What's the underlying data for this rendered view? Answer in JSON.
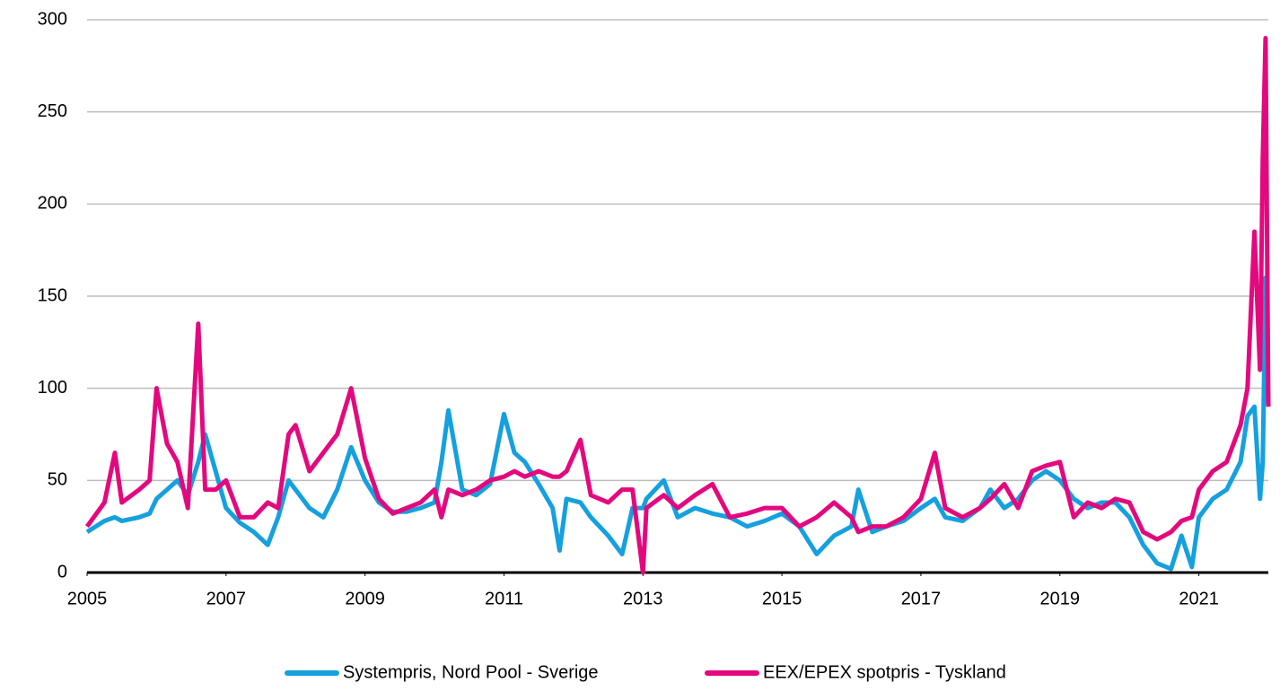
{
  "chart_data": {
    "type": "line",
    "x": [
      2005.0,
      2005.25,
      2005.4,
      2005.5,
      2005.75,
      2005.9,
      2006.0,
      2006.15,
      2006.3,
      2006.45,
      2006.6,
      2006.7,
      2006.85,
      2007.0,
      2007.2,
      2007.4,
      2007.6,
      2007.75,
      2007.9,
      2008.0,
      2008.2,
      2008.4,
      2008.6,
      2008.8,
      2009.0,
      2009.2,
      2009.4,
      2009.6,
      2009.8,
      2010.0,
      2010.1,
      2010.2,
      2010.4,
      2010.6,
      2010.8,
      2011.0,
      2011.15,
      2011.3,
      2011.5,
      2011.7,
      2011.8,
      2011.9,
      2012.1,
      2012.25,
      2012.5,
      2012.7,
      2012.85,
      2013.0,
      2013.05,
      2013.3,
      2013.5,
      2013.75,
      2014.0,
      2014.25,
      2014.5,
      2014.75,
      2015.0,
      2015.25,
      2015.5,
      2015.75,
      2016.0,
      2016.1,
      2016.3,
      2016.5,
      2016.75,
      2017.0,
      2017.2,
      2017.35,
      2017.6,
      2017.85,
      2018.0,
      2018.2,
      2018.4,
      2018.6,
      2018.8,
      2019.0,
      2019.2,
      2019.4,
      2019.6,
      2019.8,
      2020.0,
      2020.2,
      2020.4,
      2020.6,
      2020.75,
      2020.9,
      2021.0,
      2021.2,
      2021.4,
      2021.6,
      2021.7,
      2021.8,
      2021.88,
      2021.92,
      2021.96,
      2022.0
    ],
    "series": [
      {
        "name": "Systempris, Nord Pool - Sverige",
        "color": "#15a0de",
        "values": [
          22,
          28,
          30,
          28,
          30,
          32,
          40,
          45,
          50,
          42,
          60,
          75,
          55,
          35,
          27,
          22,
          15,
          30,
          50,
          45,
          35,
          30,
          45,
          68,
          50,
          38,
          33,
          33,
          35,
          38,
          60,
          88,
          45,
          42,
          48,
          86,
          65,
          60,
          48,
          35,
          12,
          40,
          38,
          30,
          20,
          10,
          35,
          35,
          40,
          50,
          30,
          35,
          32,
          30,
          25,
          28,
          32,
          25,
          10,
          20,
          25,
          45,
          22,
          25,
          28,
          35,
          40,
          30,
          28,
          35,
          45,
          35,
          40,
          50,
          55,
          50,
          40,
          35,
          38,
          38,
          30,
          15,
          5,
          2,
          20,
          3,
          30,
          40,
          45,
          60,
          85,
          90,
          40,
          60,
          160,
          90
        ]
      },
      {
        "name": "EEX/EPEX spotpris - Tyskland",
        "color": "#e4087e",
        "values": [
          25,
          38,
          65,
          38,
          45,
          50,
          100,
          70,
          60,
          35,
          135,
          45,
          45,
          50,
          30,
          30,
          38,
          35,
          75,
          80,
          55,
          65,
          75,
          100,
          62,
          40,
          32,
          35,
          38,
          45,
          30,
          45,
          42,
          45,
          50,
          52,
          55,
          52,
          55,
          52,
          52,
          55,
          72,
          42,
          38,
          45,
          45,
          0,
          35,
          42,
          35,
          42,
          48,
          30,
          32,
          35,
          35,
          25,
          30,
          38,
          30,
          22,
          25,
          25,
          30,
          40,
          65,
          35,
          30,
          35,
          40,
          48,
          35,
          55,
          58,
          60,
          30,
          38,
          35,
          40,
          38,
          22,
          18,
          22,
          28,
          30,
          45,
          55,
          60,
          80,
          100,
          185,
          110,
          225,
          290,
          90
        ]
      }
    ],
    "xlim": [
      2005,
      2022
    ],
    "xticks": [
      2005,
      2007,
      2009,
      2011,
      2013,
      2015,
      2017,
      2019,
      2021
    ],
    "ylim": [
      0,
      300
    ],
    "yticks": [
      0,
      50,
      100,
      150,
      200,
      250,
      300
    ],
    "grid": true,
    "legend": "bottom"
  }
}
